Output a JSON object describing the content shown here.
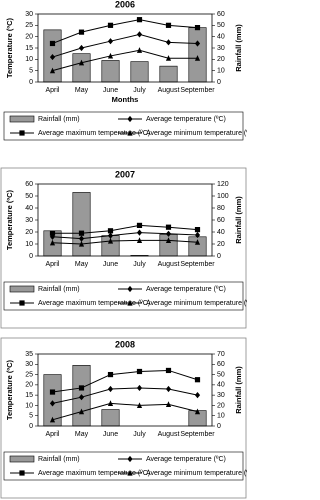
{
  "chart_data": [
    {
      "type": "combo",
      "title": "2006",
      "x_label": "Months",
      "y_label": "Temperature (ºC)",
      "y2_label": "Rainfall (mm)",
      "categories": [
        "April",
        "May",
        "June",
        "July",
        "August",
        "September"
      ],
      "ylim": [
        0,
        30
      ],
      "yticks": [
        0,
        5,
        10,
        15,
        20,
        25,
        30
      ],
      "y2lim": [
        0,
        60
      ],
      "y2ticks": [
        0,
        10,
        20,
        30,
        40,
        50,
        60
      ],
      "series": [
        {
          "name": "Rainfall (mm)",
          "type": "bar",
          "axis": "y2",
          "color": "#999999",
          "values": [
            46,
            25,
            19,
            18,
            14,
            48
          ]
        },
        {
          "name": "Average temperature (ºC)",
          "type": "line",
          "marker": "diamond",
          "color": "#000000",
          "values": [
            11,
            15,
            18,
            21,
            17.5,
            17
          ]
        },
        {
          "name": "Average maximum temperature (ºC)",
          "type": "line",
          "marker": "square",
          "color": "#000000",
          "values": [
            17,
            22,
            25,
            27.5,
            25,
            24
          ]
        },
        {
          "name": "Average minimum temperature (ºC)",
          "type": "line",
          "marker": "triangle",
          "color": "#000000",
          "values": [
            5,
            8.5,
            11.5,
            14,
            10.5,
            10.5
          ]
        }
      ]
    },
    {
      "type": "combo",
      "title": "2007",
      "y_label": "Temperature (ºC)",
      "y2_label": "Rainfall (mm)",
      "categories": [
        "April",
        "May",
        "June",
        "July",
        "August",
        "September"
      ],
      "ylim": [
        0,
        60
      ],
      "yticks": [
        0,
        10,
        20,
        30,
        40,
        50,
        60
      ],
      "y2lim": [
        0,
        120
      ],
      "y2ticks": [
        0,
        20,
        40,
        60,
        80,
        100,
        120
      ],
      "series": [
        {
          "name": "Rainfall (mm)",
          "type": "bar",
          "axis": "y2",
          "color": "#999999",
          "values": [
            42,
            106,
            34,
            1,
            36,
            32
          ]
        },
        {
          "name": "Average temperature (ºC)",
          "type": "line",
          "marker": "diamond",
          "color": "#000000",
          "values": [
            16,
            14.5,
            17,
            19.5,
            18.5,
            17.5
          ]
        },
        {
          "name": "Average maximum temperature (ºC)",
          "type": "line",
          "marker": "square",
          "color": "#000000",
          "values": [
            19,
            19,
            21,
            25.5,
            24,
            22
          ]
        },
        {
          "name": "Average minimum temperature (ºC)",
          "type": "line",
          "marker": "triangle",
          "color": "#000000",
          "values": [
            11,
            10,
            12.5,
            13,
            13,
            11.5
          ]
        }
      ]
    },
    {
      "type": "combo",
      "title": "2008",
      "y_label": "Temperature (ºC)",
      "y2_label": "Rainfall (mm)",
      "categories": [
        "April",
        "May",
        "June",
        "July",
        "August",
        "September"
      ],
      "ylim": [
        0,
        35
      ],
      "yticks": [
        0,
        5,
        10,
        15,
        20,
        25,
        30,
        35
      ],
      "y2lim": [
        0,
        70
      ],
      "y2ticks": [
        0,
        10,
        20,
        30,
        40,
        50,
        60,
        70
      ],
      "series": [
        {
          "name": "Rainfall (mm)",
          "type": "bar",
          "axis": "y2",
          "color": "#999999",
          "values": [
            50,
            59,
            16,
            0,
            0,
            15
          ]
        },
        {
          "name": "Average temperature (ºC)",
          "type": "line",
          "marker": "diamond",
          "color": "#000000",
          "values": [
            11,
            14,
            18,
            18.5,
            18,
            15
          ]
        },
        {
          "name": "Average maximum temperature (ºC)",
          "type": "line",
          "marker": "square",
          "color": "#000000",
          "values": [
            16.5,
            18.5,
            25,
            26.5,
            27,
            22.5
          ]
        },
        {
          "name": "Average minimum temperature (ºC)",
          "type": "line",
          "marker": "triangle",
          "color": "#000000",
          "values": [
            3,
            7,
            11,
            10,
            10.5,
            7
          ]
        }
      ]
    }
  ]
}
